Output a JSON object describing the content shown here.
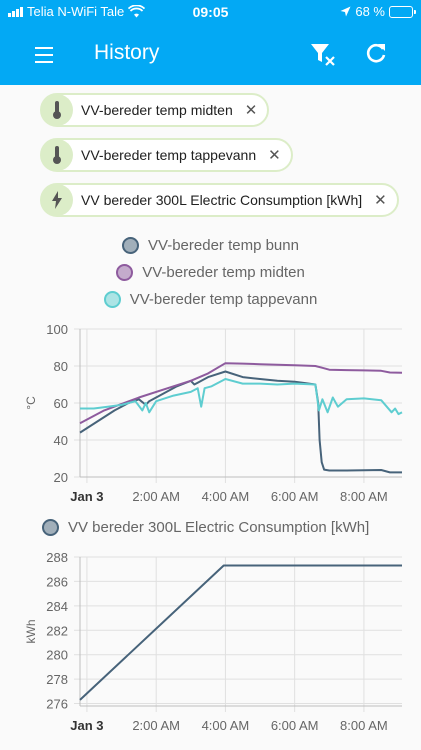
{
  "status_bar": {
    "carrier": "Telia N-WiFi Tale",
    "time": "09:05",
    "battery": "68 %",
    "battery_level": 0.68,
    "icons": [
      "signal-icon",
      "wifi-icon",
      "location-arrow-icon",
      "battery-icon"
    ]
  },
  "toolbar": {
    "title": "History",
    "background": "#03a9f4",
    "icons": [
      "menu-icon",
      "filter-remove-icon",
      "refresh-icon"
    ]
  },
  "filters": [
    {
      "label": "VV-bereder temp midten",
      "icon": "thermometer-icon"
    },
    {
      "label": "VV-bereder temp tappevann",
      "icon": "thermometer-icon"
    },
    {
      "label": "VV bereder 300L Electric Consumption [kWh]",
      "icon": "flash-icon"
    }
  ],
  "chart_data": [
    {
      "type": "line",
      "xlabel": "",
      "ylabel": "°C",
      "ylim": [
        20,
        100
      ],
      "y_ticks": [
        "20",
        "40",
        "60",
        "80",
        "100"
      ],
      "x_tick_labels": [
        "Jan 3",
        "2:00 AM",
        "4:00 AM",
        "6:00 AM",
        "8:00 AM"
      ],
      "x_ticks_hours": [
        0,
        2,
        4,
        6,
        8
      ],
      "xlim_hours": [
        -0.2,
        9.1
      ],
      "grid": true,
      "legend_placement": "top",
      "series": [
        {
          "name": "VV-bereder temp bunn",
          "color": "#47637a",
          "x_hours": [
            -0.2,
            0.3,
            0.8,
            1.2,
            1.5,
            1.7,
            1.8,
            2.1,
            2.6,
            3.0,
            3.1,
            3.2,
            3.5,
            4.0,
            4.5,
            5.0,
            5.5,
            6.0,
            6.6,
            6.68,
            6.72,
            6.78,
            6.85,
            7.0,
            7.5,
            8.0,
            8.5,
            8.75,
            9.1
          ],
          "y": [
            44,
            50,
            56,
            60,
            62,
            59,
            61,
            64,
            69,
            72,
            70,
            71,
            74,
            77,
            74,
            73,
            72,
            71.5,
            70,
            60,
            40,
            28,
            24,
            23.5,
            23.5,
            23.6,
            23.8,
            22.5,
            22.5
          ]
        },
        {
          "name": "VV-bereder temp midten",
          "color": "#8e5b9e",
          "x_hours": [
            -0.2,
            0.5,
            1.5,
            2.5,
            3.0,
            3.5,
            4.0,
            4.5,
            5.0,
            5.5,
            6.0,
            6.6,
            6.8,
            7.0,
            7.5,
            8.0,
            8.5,
            8.75,
            9.1
          ],
          "y": [
            49,
            56,
            63,
            69,
            72,
            76,
            81.5,
            81.3,
            81,
            80.7,
            80.4,
            80,
            79,
            78,
            77.8,
            77.6,
            77.4,
            76.5,
            76.3
          ],
          "note": ""
        },
        {
          "name": "VV-bereder temp tappevann",
          "color": "#5ecdd0",
          "x_hours": [
            -0.2,
            0.2,
            0.6,
            1.0,
            1.4,
            1.6,
            1.7,
            1.8,
            2.0,
            2.5,
            3.0,
            3.2,
            3.3,
            3.4,
            3.6,
            4.0,
            4.5,
            5.0,
            5.5,
            6.0,
            6.6,
            6.7,
            6.8,
            6.95,
            7.1,
            7.25,
            7.5,
            8.0,
            8.5,
            8.8,
            8.9,
            9.0,
            9.1
          ],
          "y": [
            57,
            57,
            58,
            59,
            61,
            56,
            60,
            55,
            61,
            64,
            66,
            68,
            58,
            68,
            69,
            73,
            70.5,
            70.5,
            70,
            70.5,
            70,
            56,
            62,
            55,
            63,
            58,
            62,
            62.5,
            61.5,
            55,
            57,
            54,
            55
          ]
        }
      ]
    },
    {
      "type": "line",
      "xlabel": "",
      "ylabel": "kWh",
      "ylim": [
        275.8,
        288
      ],
      "y_ticks": [
        "276",
        "278",
        "280",
        "282",
        "284",
        "286",
        "288"
      ],
      "x_tick_labels": [
        "Jan 3",
        "2:00 AM",
        "4:00 AM",
        "6:00 AM",
        "8:00 AM"
      ],
      "x_ticks_hours": [
        0,
        2,
        4,
        6,
        8
      ],
      "xlim_hours": [
        -0.2,
        9.1
      ],
      "grid": true,
      "legend_placement": "top",
      "series": [
        {
          "name": "VV bereder 300L Electric Consumption [kWh]",
          "color": "#47637a",
          "x_hours": [
            -0.2,
            3.95,
            9.1
          ],
          "y": [
            276.3,
            287.3,
            287.3
          ]
        }
      ]
    }
  ]
}
